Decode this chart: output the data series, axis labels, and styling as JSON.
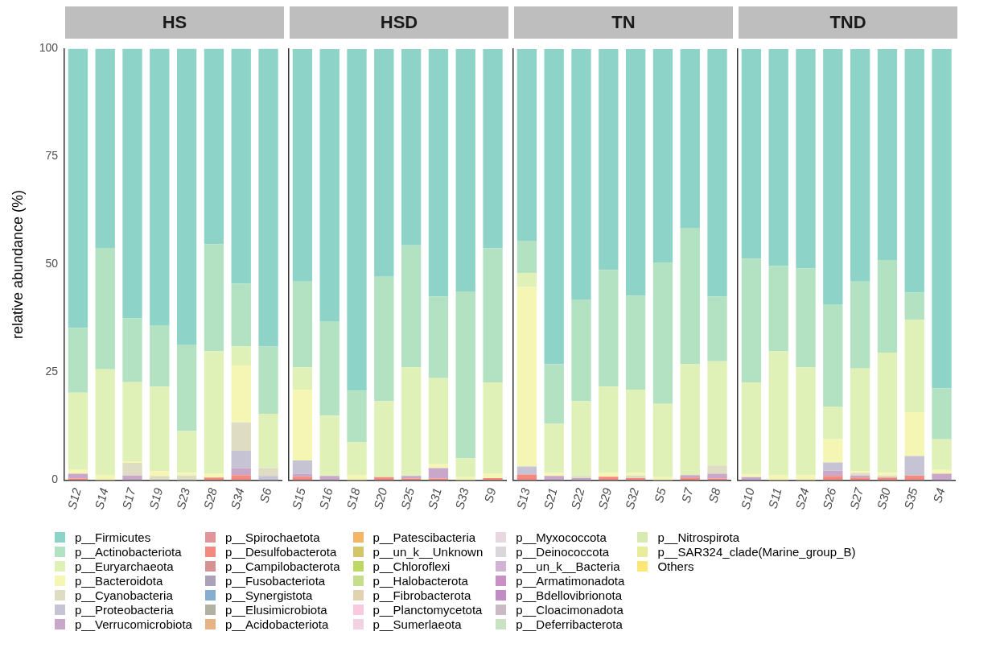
{
  "chart_data": [
    {
      "type": "bar",
      "title": "HS",
      "ylabel": "relative abundance (%)",
      "stacked": true,
      "legend": "bottom",
      "ylim": [
        0,
        100
      ],
      "yticks": [
        0,
        25,
        50,
        75,
        100
      ],
      "categories": [
        "S12",
        "S14",
        "S17",
        "S19",
        "S23",
        "S28",
        "S34",
        "S6"
      ],
      "series": [
        {
          "name": "Others",
          "color": "#fde675",
          "values": [
            null,
            null,
            null,
            null,
            null,
            null,
            null,
            null
          ]
        },
        {
          "name": "p__SAR324_clade(Marine_group_B)",
          "color": "#e9ec9b",
          "values": [
            null,
            null,
            null,
            null,
            null,
            null,
            null,
            null
          ]
        },
        {
          "name": "p__Nitrospirota",
          "color": "#d7ebb0",
          "values": [
            null,
            null,
            null,
            null,
            null,
            null,
            null,
            null
          ]
        },
        {
          "name": "p__Deferribacterota",
          "color": "#c8e2c3",
          "values": [
            null,
            null,
            null,
            null,
            null,
            null,
            null,
            null
          ]
        },
        {
          "name": "p__Cloacimonadota",
          "color": "#c9bac6",
          "values": [
            null,
            null,
            null,
            null,
            null,
            null,
            null,
            null
          ]
        },
        {
          "name": "p__Bdellovibrionota",
          "color": "#c18cc4",
          "values": [
            null,
            null,
            null,
            null,
            null,
            null,
            null,
            null
          ]
        },
        {
          "name": "p__Armatimonadota",
          "color": "#c890c5",
          "values": [
            null,
            null,
            null,
            null,
            null,
            null,
            null,
            null
          ]
        },
        {
          "name": "p__un_k__Bacteria",
          "color": "#d1b3d3",
          "values": [
            null,
            null,
            null,
            null,
            null,
            null,
            null,
            null
          ]
        },
        {
          "name": "p__Deinococcota",
          "color": "#d9d7db",
          "values": [
            null,
            null,
            null,
            null,
            null,
            null,
            null,
            null
          ]
        },
        {
          "name": "p__Myxococcota",
          "color": "#e8d6e0",
          "values": [
            null,
            null,
            null,
            null,
            null,
            null,
            null,
            null
          ]
        },
        {
          "name": "p__Sumerlaeota",
          "color": "#f2d2e2",
          "values": [
            null,
            null,
            null,
            null,
            null,
            null,
            null,
            null
          ]
        },
        {
          "name": "p__Planctomycetota",
          "color": "#f8c9df",
          "values": [
            null,
            null,
            null,
            null,
            null,
            null,
            null,
            null
          ]
        },
        {
          "name": "p__Fibrobacterota",
          "color": "#e2d3b0",
          "values": [
            null,
            null,
            null,
            null,
            null,
            null,
            null,
            null
          ]
        },
        {
          "name": "p__Halobacterota",
          "color": "#c6dd8c",
          "values": [
            null,
            null,
            null,
            null,
            null,
            null,
            null,
            null
          ]
        },
        {
          "name": "p__Chloroflexi",
          "color": "#bfd763",
          "values": [
            null,
            null,
            null,
            null,
            null,
            null,
            null,
            null
          ]
        },
        {
          "name": "p__un_k__Unknown",
          "color": "#d3c56a",
          "values": [
            null,
            null,
            null,
            null,
            null,
            null,
            null,
            null
          ]
        },
        {
          "name": "p__Patescibacteria",
          "color": "#f4b567",
          "values": [
            null,
            null,
            null,
            null,
            null,
            null,
            null,
            null
          ]
        },
        {
          "name": "p__Acidobacteriota",
          "color": "#e6b484",
          "values": [
            null,
            null,
            null,
            null,
            null,
            null,
            null,
            null
          ]
        },
        {
          "name": "p__Elusimicrobiota",
          "color": "#b1b1a4",
          "values": [
            null,
            null,
            null,
            null,
            null,
            null,
            null,
            null
          ]
        },
        {
          "name": "p__Synergistota",
          "color": "#86aed0",
          "values": [
            null,
            null,
            null,
            null,
            null,
            null,
            null,
            null
          ]
        },
        {
          "name": "p__Fusobacteriota",
          "color": "#aba2b8",
          "values": [
            null,
            null,
            null,
            null,
            null,
            null,
            null,
            null
          ]
        },
        {
          "name": "p__Campilobacterota",
          "color": "#d49293",
          "values": [
            null,
            null,
            null,
            null,
            null,
            null,
            null,
            null
          ]
        },
        {
          "name": "p__Desulfobacterota",
          "color": "#f38a80",
          "values": [
            0.4,
            null,
            null,
            null,
            null,
            0.6,
            1.2,
            null
          ]
        },
        {
          "name": "p__Spirochaetota",
          "color": "#e1949a",
          "values": [
            null,
            null,
            null,
            null,
            null,
            null,
            null,
            null
          ]
        },
        {
          "name": "p__Verrucomicrobiota",
          "color": "#c8a7c8",
          "values": [
            1.1,
            null,
            1.1,
            null,
            null,
            null,
            1.6,
            null
          ]
        },
        {
          "name": "p__Proteobacteria",
          "color": "#c6c3d4",
          "values": [
            null,
            null,
            null,
            null,
            null,
            null,
            4.0,
            1.0
          ]
        },
        {
          "name": "p__Cyanobacteria",
          "color": "#dfdcc4",
          "values": [
            null,
            null,
            2.9,
            1.0,
            1.1,
            null,
            6.6,
            1.8
          ]
        },
        {
          "name": "p__Bacteroidota",
          "color": "#f6f6b4",
          "values": [
            0.9,
            1.1,
            0.4,
            1.1,
            0.6,
            0.9,
            13.2,
            null
          ]
        },
        {
          "name": "p__Euryarchaeota",
          "color": "#e0f1b7",
          "values": [
            17.9,
            24.6,
            18.3,
            19.6,
            9.7,
            28.4,
            4.4,
            12.6
          ]
        },
        {
          "name": "p__Actinobacteriota",
          "color": "#b2e2c1",
          "values": [
            15.0,
            28.1,
            14.8,
            14.2,
            19.9,
            24.8,
            14.5,
            15.6
          ]
        },
        {
          "name": "p__Firmicutes",
          "color": "#8dd3c7",
          "values": [
            64.7,
            46.2,
            62.5,
            64.1,
            68.7,
            45.3,
            54.5,
            69.0
          ]
        }
      ]
    },
    {
      "type": "bar",
      "title": "HSD",
      "stacked": true,
      "tick_labels": "x",
      "ylim": [
        0,
        100
      ],
      "categories": [
        "S15",
        "S16",
        "S18",
        "S20",
        "S25",
        "S31",
        "S33",
        "S9"
      ],
      "series": [
        {
          "color": "#f38a80",
          "values": [
            0.8,
            null,
            null,
            0.7,
            0.4,
            0.4,
            null,
            0.5
          ]
        },
        {
          "color": "#c8a7c8",
          "values": [
            0.7,
            1.0,
            null,
            null,
            0.6,
            2.4,
            null,
            null
          ]
        },
        {
          "color": "#c6c3d4",
          "values": [
            3.1,
            null,
            null,
            null,
            null,
            null,
            null,
            null
          ]
        },
        {
          "color": "#f6f6b4",
          "values": [
            16.4,
            null,
            1.1,
            null,
            null,
            0.9,
            0.7,
            1.0
          ]
        },
        {
          "color": "#e0f1b7",
          "values": [
            5.2,
            14.0,
            7.7,
            17.6,
            25.2,
            20.0,
            4.4,
            21.2
          ]
        },
        {
          "color": "#b2e2c1",
          "values": [
            19.9,
            21.9,
            12.0,
            28.9,
            28.3,
            18.9,
            38.7,
            31.1
          ]
        },
        {
          "color": "#8dd3c7",
          "values": [
            53.9,
            63.1,
            79.2,
            52.8,
            45.5,
            57.4,
            56.2,
            46.2
          ]
        }
      ]
    },
    {
      "type": "bar",
      "title": "TN",
      "stacked": true,
      "tick_labels": "x",
      "ylim": [
        0,
        100
      ],
      "categories": [
        "S13",
        "S21",
        "S22",
        "S29",
        "S32",
        "S5",
        "S7",
        "S8"
      ],
      "series": [
        {
          "color": "#f38a80",
          "values": [
            1.3,
            null,
            null,
            0.8,
            0.5,
            null,
            0.6,
            0.4
          ]
        },
        {
          "color": "#c8a7c8",
          "values": [
            null,
            1.0,
            0.5,
            null,
            null,
            null,
            0.6,
            1.1
          ]
        },
        {
          "color": "#c6c3d4",
          "values": [
            1.9,
            null,
            null,
            null,
            null,
            null,
            null,
            null
          ]
        },
        {
          "color": "#dfdcc4",
          "values": [
            null,
            null,
            0.5,
            null,
            0.6,
            null,
            null,
            1.9
          ]
        },
        {
          "color": "#f6f6b4",
          "values": [
            41.6,
            0.7,
            null,
            0.9,
            0.6,
            0.7,
            null,
            null
          ]
        },
        {
          "color": "#e0f1b7",
          "values": [
            3.3,
            11.4,
            17.3,
            20.0,
            19.3,
            17.0,
            25.7,
            24.2
          ]
        },
        {
          "color": "#b2e2c1",
          "values": [
            7.3,
            13.8,
            23.5,
            27.1,
            21.8,
            32.8,
            31.5,
            15.0
          ]
        },
        {
          "color": "#8dd3c7",
          "values": [
            44.6,
            73.1,
            58.2,
            51.2,
            57.2,
            49.5,
            41.6,
            57.4
          ]
        }
      ]
    },
    {
      "type": "bar",
      "title": "TND",
      "stacked": true,
      "tick_labels": "x",
      "ylim": [
        0,
        100
      ],
      "categories": [
        "S10",
        "S11",
        "S24",
        "S26",
        "S27",
        "S30",
        "S35",
        "S4"
      ],
      "series": [
        {
          "color": "#f38a80",
          "values": [
            null,
            null,
            null,
            1.0,
            0.6,
            0.6,
            1.1,
            null
          ]
        },
        {
          "color": "#c8a7c8",
          "values": [
            0.7,
            null,
            null,
            1.2,
            0.5,
            null,
            null,
            1.5
          ]
        },
        {
          "color": "#c6c3d4",
          "values": [
            null,
            null,
            null,
            1.9,
            null,
            null,
            4.5,
            null
          ]
        },
        {
          "color": "#dfdcc4",
          "values": [
            null,
            null,
            null,
            null,
            0.6,
            0.5,
            null,
            null
          ]
        },
        {
          "color": "#f6f6b4",
          "values": [
            0.6,
            1.2,
            1.2,
            5.4,
            0.4,
            0.6,
            10.2,
            0.9
          ]
        },
        {
          "color": "#e0f1b7",
          "values": [
            21.4,
            28.7,
            25.0,
            7.6,
            23.8,
            27.9,
            21.4,
            7.1
          ]
        },
        {
          "color": "#b2e2c1",
          "values": [
            28.7,
            19.8,
            22.9,
            23.7,
            20.2,
            21.5,
            6.3,
            11.8
          ]
        },
        {
          "color": "#8dd3c7",
          "values": [
            48.6,
            50.3,
            50.9,
            59.2,
            53.9,
            48.9,
            56.5,
            78.7
          ]
        }
      ]
    }
  ]
}
